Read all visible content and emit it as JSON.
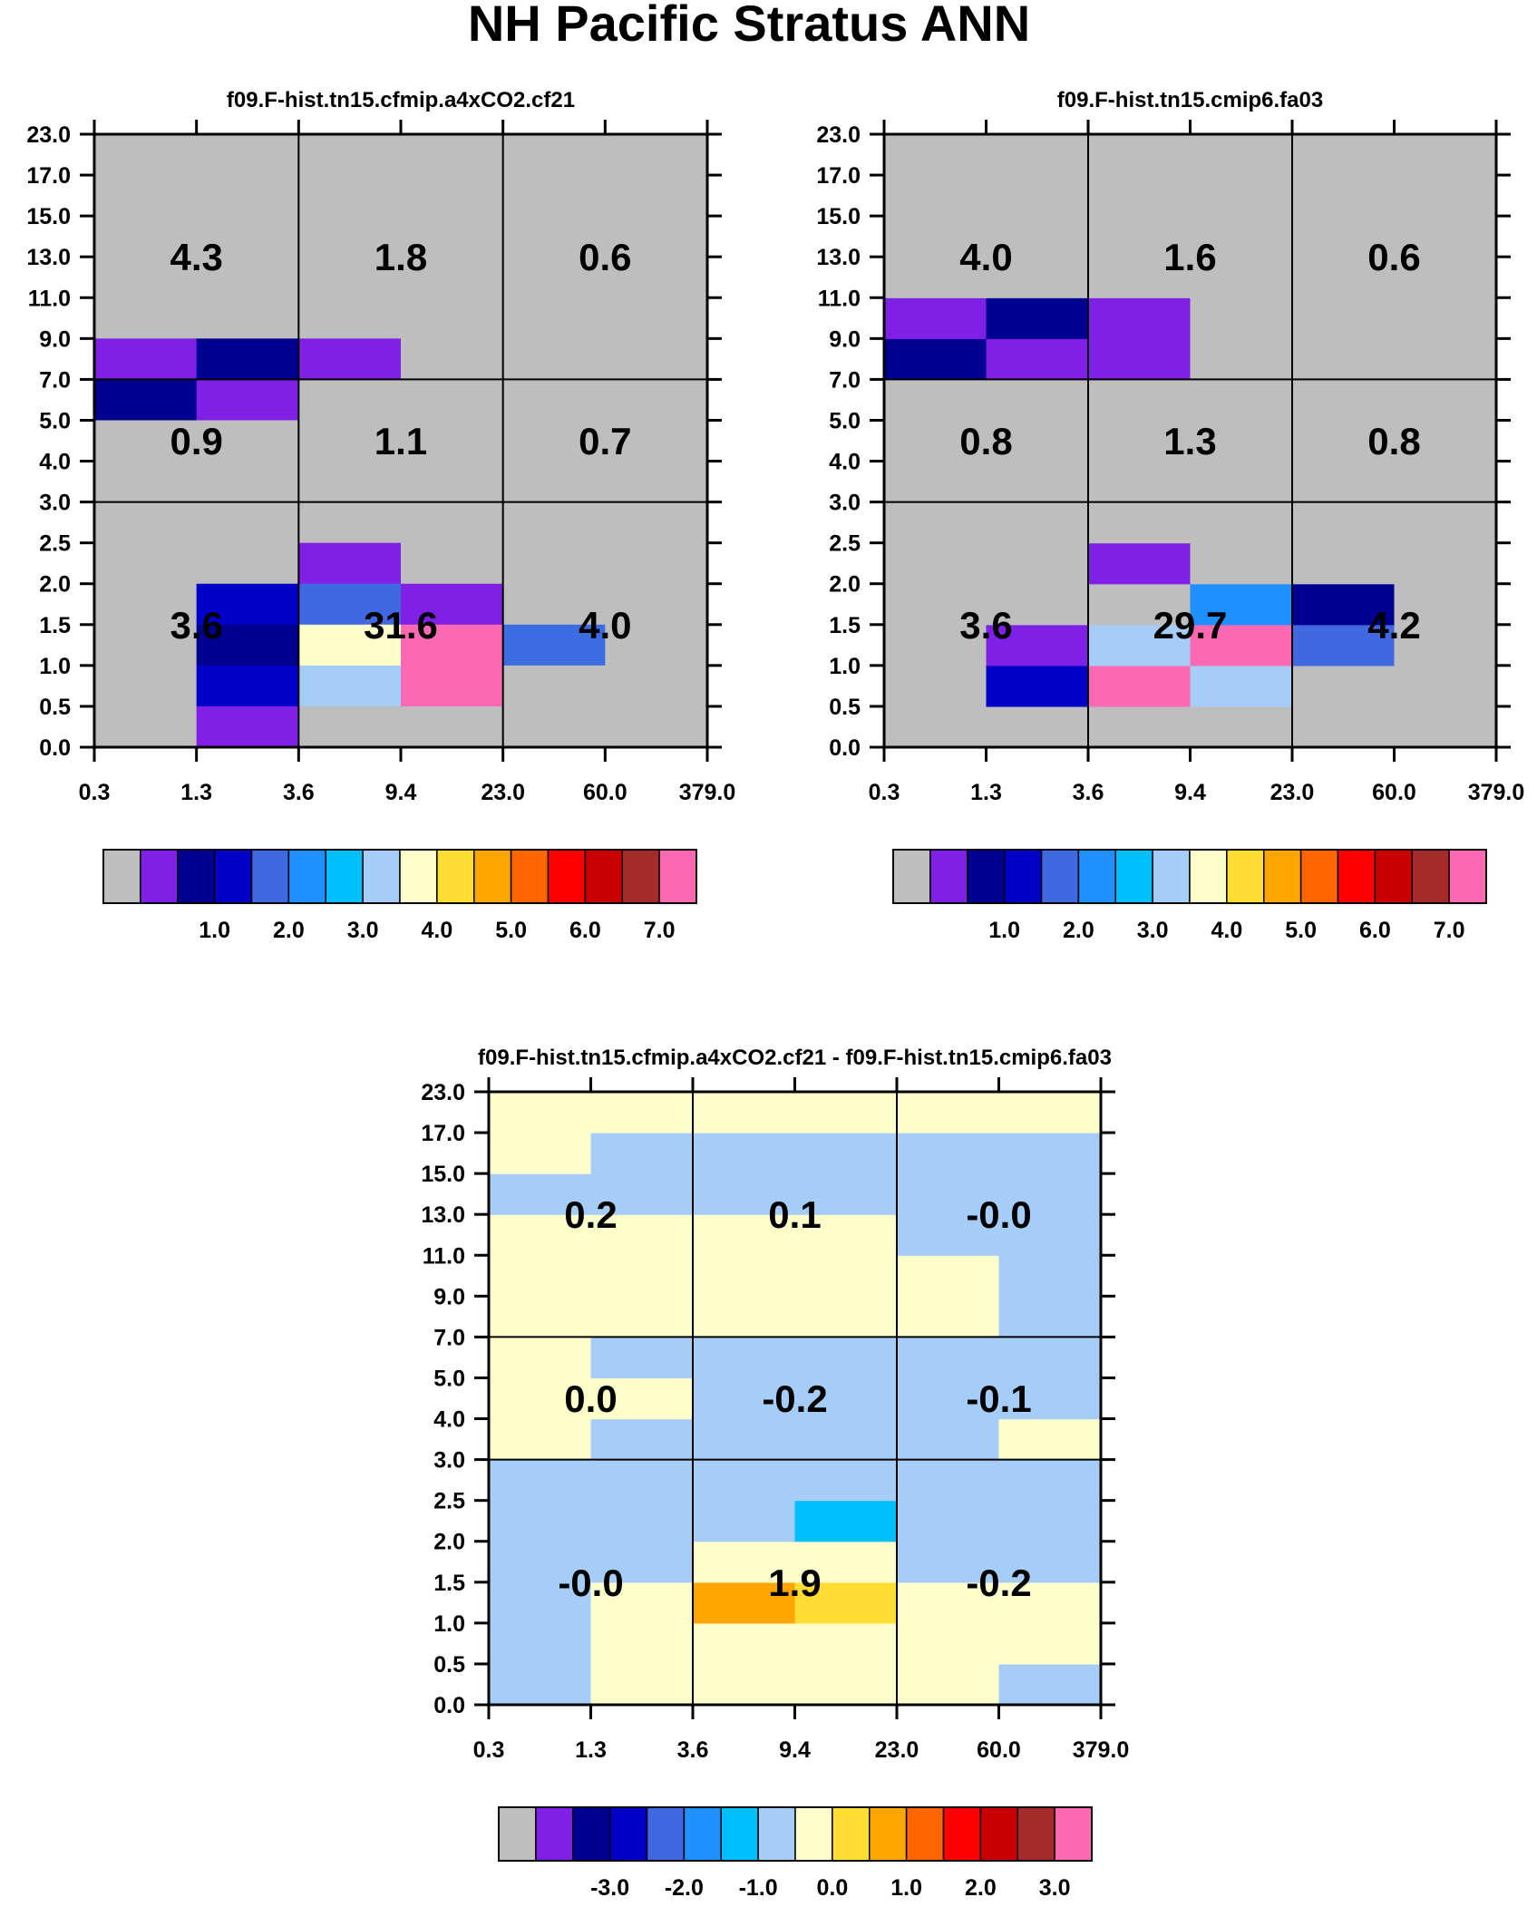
{
  "title": "NH Pacific Stratus ANN",
  "axes": {
    "x_ticks": [
      "0.3",
      "1.3",
      "3.6",
      "9.4",
      "23.0",
      "60.0",
      "379.0"
    ],
    "y_ticks": [
      "0.0",
      "0.5",
      "1.0",
      "1.5",
      "2.0",
      "2.5",
      "3.0",
      "4.0",
      "5.0",
      "7.0",
      "9.0",
      "11.0",
      "13.0",
      "15.0",
      "17.0",
      "23.0"
    ]
  },
  "chart_data": [
    {
      "type": "heatmap",
      "title": "f09.F-hist.tn15.cfmip.a4xCO2.cf21",
      "x_edges": [
        "0.3",
        "1.3",
        "3.6",
        "9.4",
        "23.0",
        "60.0",
        "379.0"
      ],
      "y_edges": [
        "0.0",
        "0.5",
        "1.0",
        "1.5",
        "2.0",
        "2.5",
        "3.0",
        "4.0",
        "5.0",
        "7.0",
        "9.0",
        "11.0",
        "13.0",
        "15.0",
        "17.0",
        "23.0"
      ],
      "grid_rows": [
        "gggggg",
        "gggggg",
        "gggggg",
        "gggggg",
        "gggggg",
        "abaggg",
        "bagggg",
        "gggggg",
        "gggggg",
        "gggggg",
        "ggaggg",
        "gcdagg",
        "gbyuxg",
        "gcjpgg",
        "gagggg"
      ],
      "color_key": {
        "g": "#bebebe",
        "a": "#8020e6",
        "b": "#000090",
        "c": "#0000c8",
        "d": "#4068e0",
        "x": "#3b6ce0",
        "j": "#a6cdf8",
        "p": "#ff69b4",
        "y": "#ffffcc",
        "u": "#ff69b4"
      },
      "region_totals": [
        {
          "label": "4.3",
          "value": 4.3
        },
        {
          "label": "1.8",
          "value": 1.8
        },
        {
          "label": "0.6",
          "value": 0.6
        },
        {
          "label": "0.9",
          "value": 0.9
        },
        {
          "label": "1.1",
          "value": 1.1
        },
        {
          "label": "0.7",
          "value": 0.7
        },
        {
          "label": "3.6",
          "value": 3.6
        },
        {
          "label": "31.6",
          "value": 31.6
        },
        {
          "label": "4.0",
          "value": 4.0
        }
      ],
      "colorbar": {
        "colors": [
          "#bebebe",
          "#8020e6",
          "#000090",
          "#0000c8",
          "#4068e0",
          "#1e90ff",
          "#00bfff",
          "#a6cdf8",
          "#ffffcc",
          "#ffdd33",
          "#ffa500",
          "#ff6600",
          "#ff0000",
          "#c80000",
          "#a52a2a",
          "#ff69b4"
        ],
        "labels": [
          "1.0",
          "2.0",
          "3.0",
          "4.0",
          "5.0",
          "6.0",
          "7.0"
        ]
      }
    },
    {
      "type": "heatmap",
      "title": "f09.F-hist.tn15.cmip6.fa03",
      "x_edges": [
        "0.3",
        "1.3",
        "3.6",
        "9.4",
        "23.0",
        "60.0",
        "379.0"
      ],
      "y_edges": [
        "0.0",
        "0.5",
        "1.0",
        "1.5",
        "2.0",
        "2.5",
        "3.0",
        "4.0",
        "5.0",
        "7.0",
        "9.0",
        "11.0",
        "13.0",
        "15.0",
        "17.0",
        "23.0"
      ],
      "grid_rows": [
        "gggggg",
        "gcpjgg",
        "gajpdg",
        "gggsbg",
        "ggaggg",
        "gggggg",
        "gggggg",
        "gggggg",
        "gggggg",
        "baaggg",
        "abaggg",
        "gggggg",
        "gggggg",
        "gggggg",
        "gggggg"
      ],
      "row_order": "bottom-up",
      "color_key": {
        "g": "#bebebe",
        "a": "#8020e6",
        "b": "#000090",
        "c": "#0000c8",
        "d": "#4068e0",
        "j": "#a6cdf8",
        "p": "#ff69b4",
        "s": "#1e90ff"
      },
      "region_totals": [
        {
          "label": "4.0",
          "value": 4.0
        },
        {
          "label": "1.6",
          "value": 1.6
        },
        {
          "label": "0.6",
          "value": 0.6
        },
        {
          "label": "0.8",
          "value": 0.8
        },
        {
          "label": "1.3",
          "value": 1.3
        },
        {
          "label": "0.8",
          "value": 0.8
        },
        {
          "label": "3.6",
          "value": 3.6
        },
        {
          "label": "29.7",
          "value": 29.7
        },
        {
          "label": "4.2",
          "value": 4.2
        }
      ],
      "colorbar": {
        "colors": [
          "#bebebe",
          "#8020e6",
          "#000090",
          "#0000c8",
          "#4068e0",
          "#1e90ff",
          "#00bfff",
          "#a6cdf8",
          "#ffffcc",
          "#ffdd33",
          "#ffa500",
          "#ff6600",
          "#ff0000",
          "#c80000",
          "#a52a2a",
          "#ff69b4"
        ],
        "labels": [
          "1.0",
          "2.0",
          "3.0",
          "4.0",
          "5.0",
          "6.0",
          "7.0"
        ]
      }
    },
    {
      "type": "heatmap",
      "title": "f09.F-hist.tn15.cfmip.a4xCO2.cf21 - f09.F-hist.tn15.cmip6.fa03",
      "x_edges": [
        "0.3",
        "1.3",
        "3.6",
        "9.4",
        "23.0",
        "60.0",
        "379.0"
      ],
      "y_edges": [
        "0.0",
        "0.5",
        "1.0",
        "1.5",
        "2.0",
        "2.5",
        "3.0",
        "4.0",
        "5.0",
        "7.0",
        "9.0",
        "11.0",
        "13.0",
        "15.0",
        "17.0",
        "23.0"
      ],
      "grid_rows": [
        "jyyyyj",
        "jyyyyy",
        "jyowyy",
        "jjyyjj",
        "jjjkjj",
        "jjjjjj",
        "yjjjjy",
        "yyjjjj",
        "yjjjjj",
        "yyyyyj",
        "yyyyyj",
        "yyyyjj",
        "jjjjjj",
        "yjjjjj",
        "yyyyyy"
      ],
      "row_order": "bottom-up",
      "color_key": {
        "y": "#ffffcc",
        "j": "#a6cdf8",
        "o": "#ffa500",
        "w": "#ffdd33",
        "k": "#00bfff"
      },
      "region_totals": [
        {
          "label": "0.2",
          "value": 0.2
        },
        {
          "label": "0.1",
          "value": 0.1
        },
        {
          "label": "-0.0",
          "value": -0.0
        },
        {
          "label": "0.0",
          "value": 0.0
        },
        {
          "label": "-0.2",
          "value": -0.2
        },
        {
          "label": "-0.1",
          "value": -0.1
        },
        {
          "label": "-0.0",
          "value": -0.0
        },
        {
          "label": "1.9",
          "value": 1.9
        },
        {
          "label": "-0.2",
          "value": -0.2
        }
      ],
      "colorbar": {
        "colors": [
          "#bebebe",
          "#8020e6",
          "#000090",
          "#0000c8",
          "#4068e0",
          "#1e90ff",
          "#00bfff",
          "#a6cdf8",
          "#ffffcc",
          "#ffdd33",
          "#ffa500",
          "#ff6600",
          "#ff0000",
          "#c80000",
          "#a52a2a",
          "#ff69b4"
        ],
        "labels": [
          "-3.0",
          "-2.0",
          "-1.0",
          "0.0",
          "1.0",
          "2.0",
          "3.0"
        ]
      }
    }
  ]
}
